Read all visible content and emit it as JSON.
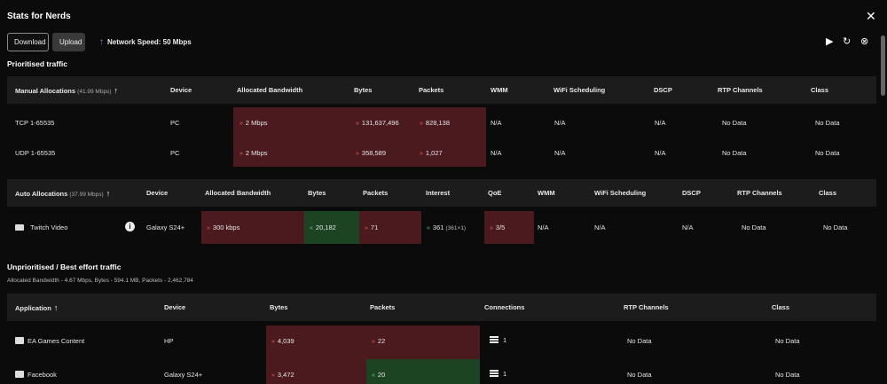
{
  "window": {
    "title": "Stats for Nerds"
  },
  "toolbar": {
    "download": "Download",
    "upload": "Upload",
    "network_speed": "Network Speed: 50 Mbps"
  },
  "prioritised": {
    "title": "Prioritised traffic",
    "manual": {
      "header": [
        "Manual Allocations",
        "(41.99 Mbps)",
        "Device",
        "Allocated Bandwidth",
        "Bytes",
        "Packets",
        "WMM",
        "WiFi Scheduling",
        "DSCP",
        "RTP Channels",
        "Class"
      ],
      "rows": [
        [
          "TCP 1-65535",
          "PC",
          "2 Mbps",
          "131,637,496",
          "828,138",
          "N/A",
          "N/A",
          "N/A",
          "No Data",
          "No Data"
        ],
        [
          "UDP 1-65535",
          "PC",
          "2 Mbps",
          "358,589",
          "1,027",
          "N/A",
          "N/A",
          "N/A",
          "No Data",
          "No Data"
        ]
      ]
    },
    "auto": {
      "header": [
        "Auto Allocations",
        "(37.99 Mbps)",
        "Device",
        "Allocated Bandwidth",
        "Bytes",
        "Packets",
        "Interest",
        "QoE",
        "WMM",
        "WiFi Scheduling",
        "DSCP",
        "RTP Channels",
        "Class"
      ],
      "rows": [
        [
          "Twitch Video",
          "Galaxy S24+",
          "300 kbps",
          "20,182",
          "71",
          "361",
          "(361×1)",
          "3/5",
          "N/A",
          "N/A",
          "N/A",
          "No Data",
          "No Data"
        ]
      ]
    }
  },
  "unprioritised": {
    "title": "Unprioritised / Best effort traffic",
    "summary": "Allocated Bandwidth - 4.67 Mbps, Bytes - 594.1 MB, Packets - 2,462,784",
    "header": [
      "Application",
      "Device",
      "Bytes",
      "Packets",
      "Connections",
      "RTP Channels",
      "Class"
    ],
    "rows": [
      [
        "EA Games Content",
        "HP",
        "4,039",
        "22",
        "1",
        "No Data",
        "No Data"
      ],
      [
        "Facebook",
        "Galaxy S24+",
        "3,472",
        "20",
        "1",
        "No Data",
        "No Data"
      ]
    ]
  },
  "icons": [
    "close-icon",
    "play-icon",
    "refresh-icon",
    "cancel-circle-icon",
    "arrow-up-icon",
    "sort-up-icon",
    "video-icon",
    "info-icon",
    "folder-icon",
    "facebook-icon",
    "connections-icon",
    "arrow-down-double-icon",
    "arrow-up-double-icon"
  ],
  "colors": {
    "bad": "#4a1a1e",
    "good": "#1d4422",
    "down_arrow": "#f05a5a",
    "up_arrow": "#4fd16a"
  }
}
